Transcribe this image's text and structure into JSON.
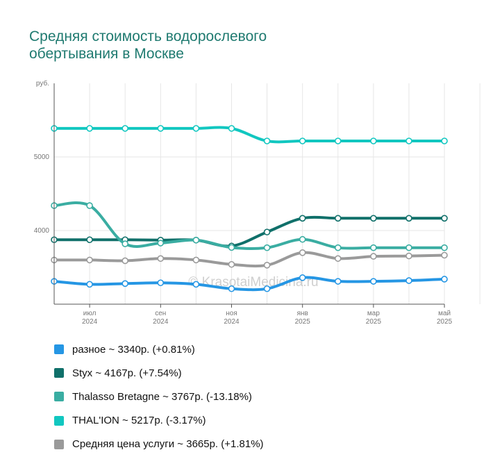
{
  "title": "Средняя стоимость водорослевого обертывания в Москве",
  "watermark": "© KrasotaiMedicina.ru",
  "chart_data": {
    "type": "line",
    "title": "Средняя стоимость водорослевого обертывания в Москве",
    "y_unit_label": "руб.",
    "y_ticks": [
      4000,
      5000
    ],
    "ylim": [
      3000,
      6000
    ],
    "x": [
      "2024-05",
      "2024-06",
      "2024-07",
      "2024-08",
      "2024-09",
      "2024-10",
      "2024-11",
      "2024-12",
      "2025-01",
      "2025-02",
      "2025-03",
      "2025-04",
      "2025-05"
    ],
    "x_tick_labels": [
      {
        "x": "2024-06",
        "month": "июл",
        "year": "2024"
      },
      {
        "x": "2024-08",
        "month": "сен",
        "year": "2024"
      },
      {
        "x": "2024-10",
        "month": "ноя",
        "year": "2024"
      },
      {
        "x": "2024-12",
        "month": "янв",
        "year": "2025"
      },
      {
        "x": "2025-02",
        "month": "мар",
        "year": "2025"
      },
      {
        "x": "2025-04",
        "month": "май",
        "year": "2025"
      }
    ],
    "grid": true,
    "series": [
      {
        "name": "разное",
        "summary": "разное ~ 3340р. (+0.81%)",
        "color": "#2596e4",
        "values": [
          3310,
          3270,
          3280,
          3290,
          3270,
          3210,
          3210,
          3360,
          3310,
          3310,
          3320,
          3340,
          null
        ]
      },
      {
        "name": "Styx",
        "summary": "Styx ~ 4167р. (+7.54%)",
        "color": "#10706a",
        "values": [
          3875,
          3875,
          3875,
          3870,
          3870,
          3790,
          3980,
          4167,
          4167,
          4167,
          4167,
          4167,
          null
        ]
      },
      {
        "name": "Thalasso Bretagne",
        "summary": "Thalasso Bretagne ~ 3767р. (-13.18%)",
        "color": "#3aada2",
        "values": [
          4339,
          4339,
          3820,
          3830,
          3870,
          3770,
          3767,
          3880,
          3767,
          3767,
          3767,
          3767,
          null
        ]
      },
      {
        "name": "THAL'ION",
        "summary": "THAL'ION ~ 5217р. (-3.17%)",
        "color": "#11c7c0",
        "values": [
          5388,
          5388,
          5388,
          5388,
          5388,
          5388,
          5217,
          5217,
          5217,
          5217,
          5217,
          5217,
          null
        ]
      },
      {
        "name": "Средняя цена услуги",
        "summary": "Средняя цена услуги ~ 3665р. (+1.81%)",
        "color": "#9a9a9a",
        "values": [
          3600,
          3600,
          3590,
          3620,
          3600,
          3540,
          3530,
          3700,
          3620,
          3650,
          3655,
          3665,
          null
        ]
      }
    ]
  }
}
